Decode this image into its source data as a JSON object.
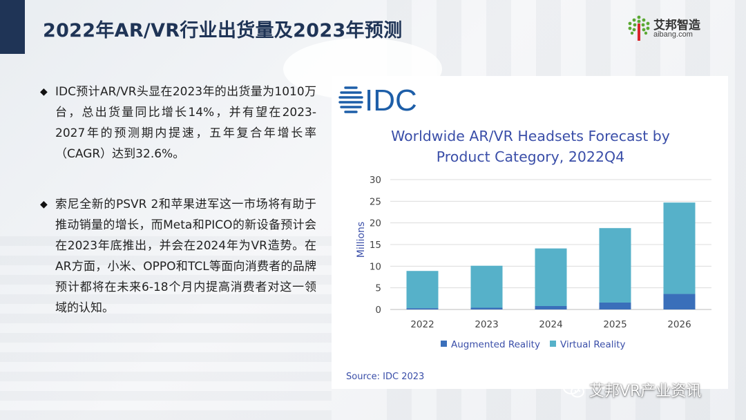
{
  "title": "2022年AR/VR行业出货量及2023年预测",
  "logo": {
    "cn": "艾邦智造",
    "en": "aibang.com",
    "icon": "tree-dots-icon",
    "color": "#5aa832"
  },
  "bullets": [
    {
      "icon": "diamond-bullet-icon",
      "text": "IDC预计AR/VR头显在2023年的出货量为1010万台，总出货量同比增长14%，并有望在2023-2027年的预测期内提速，五年复合年增长率（CAGR）达到32.6%。"
    },
    {
      "icon": "diamond-bullet-icon",
      "text": "索尼全新的PSVR 2和苹果进军这一市场将有助于推动销量的增长，而Meta和PICO的新设备预计会在2023年底推出，并会在2024年为VR造势。在AR方面，小米、OPPO和TCL等面向消费者的品牌预计都将在未来6-18个月内提高消费者对这一领域的认知。"
    }
  ],
  "chart_brand": "IDC",
  "chart_data": {
    "type": "bar",
    "stacked": true,
    "title": "Worldwide AR/VR Headsets Forecast by Product Category, 2022Q4",
    "title_lines": [
      "Worldwide AR/VR Headsets Forecast by",
      "Product Category, 2022Q4"
    ],
    "ylabel": "Millions",
    "xlabel": "",
    "categories": [
      "2022",
      "2023",
      "2024",
      "2025",
      "2026"
    ],
    "series": [
      {
        "name": "Augmented Reality",
        "color": "#3a6fba",
        "values": [
          0.3,
          0.4,
          0.8,
          1.6,
          3.6
        ]
      },
      {
        "name": "Virtual Reality",
        "color": "#56b1c9",
        "values": [
          8.6,
          9.7,
          13.3,
          17.2,
          21.1
        ]
      }
    ],
    "ylim": [
      0,
      30
    ],
    "yticks": [
      0,
      5,
      10,
      15,
      20,
      25,
      30
    ],
    "grid": true,
    "legend_position": "bottom",
    "source": "Source: IDC 2023"
  },
  "footer": {
    "icon": "wechat-icon",
    "text": "艾邦VR产业资讯"
  },
  "colors": {
    "title": "#1f3456",
    "chart_title": "#3a4ea8",
    "axis_label": "#3a4ea8",
    "idc_blue": "#1d5ea8"
  }
}
